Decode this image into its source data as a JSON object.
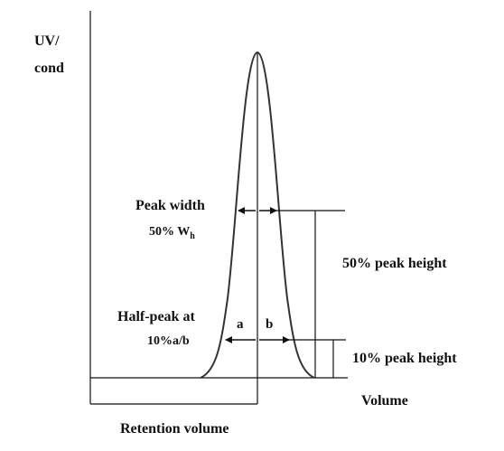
{
  "diagram": {
    "y_axis_label_line1": "UV/",
    "y_axis_label_line2": "cond",
    "x_axis_label": "Volume",
    "retention_volume_label": "Retention volume",
    "peak_width_label": "Peak width",
    "wh_prefix": "50% W",
    "wh_subscript": "h",
    "half_peak_label_line1": "Half-peak at",
    "half_peak_label_line2": "10%a/b",
    "segment_a": "a",
    "segment_b": "b",
    "fifty_percent_height_label": "50% peak height",
    "ten_percent_height_label": "10% peak height"
  }
}
